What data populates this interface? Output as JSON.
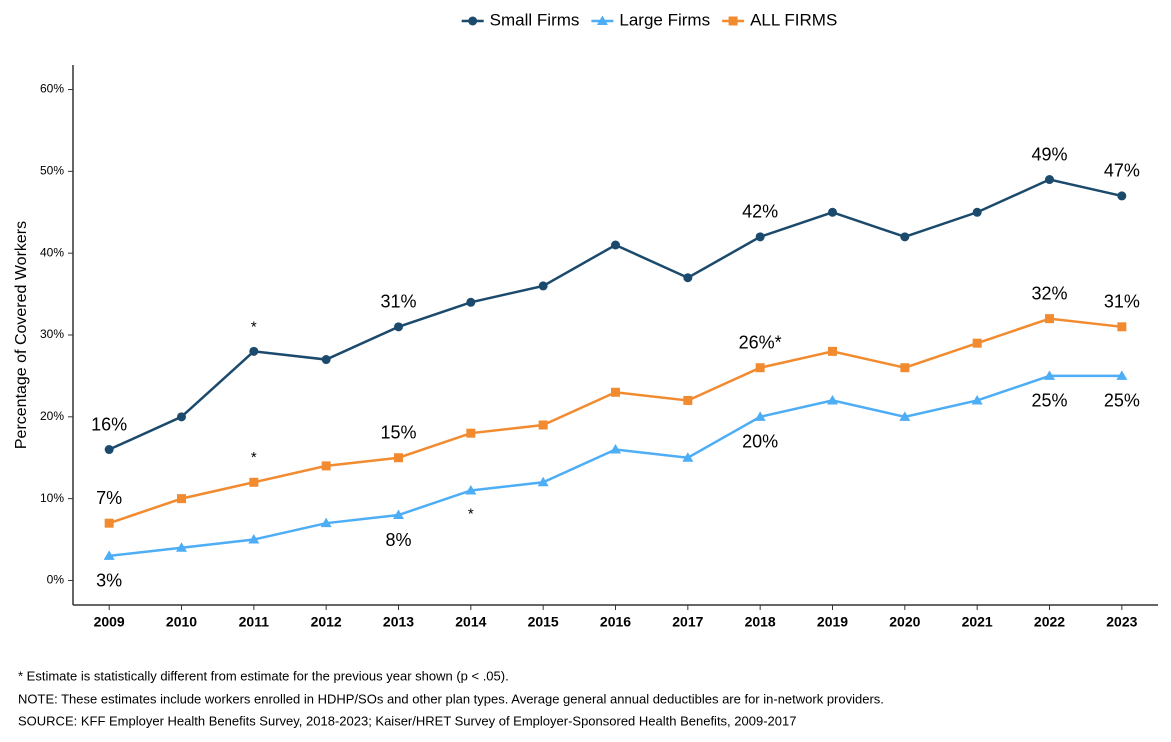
{
  "chart_data": {
    "type": "line",
    "y_label": "Percentage of Covered Workers",
    "categories": [
      "2009",
      "2010",
      "2011",
      "2012",
      "2013",
      "2014",
      "2015",
      "2016",
      "2017",
      "2018",
      "2019",
      "2020",
      "2021",
      "2022",
      "2023"
    ],
    "series": [
      {
        "name": "Small Firms",
        "color": "#1b4a6d",
        "marker": "circle",
        "label_position": "above",
        "values": [
          16,
          20,
          28,
          27,
          31,
          34,
          36,
          41,
          37,
          42,
          45,
          42,
          45,
          49,
          47
        ],
        "value_labels": [
          "16%",
          null,
          null,
          null,
          "31%",
          null,
          null,
          null,
          null,
          "42%",
          null,
          null,
          null,
          "49%",
          "47%"
        ]
      },
      {
        "name": "Large Firms",
        "color": "#4dadf5",
        "marker": "triangle",
        "label_position": "below",
        "values": [
          3,
          4,
          5,
          7,
          8,
          11,
          12,
          16,
          15,
          20,
          22,
          20,
          22,
          25,
          25
        ],
        "value_labels": [
          "3%",
          null,
          null,
          null,
          "8%",
          null,
          null,
          null,
          null,
          "20%",
          null,
          null,
          null,
          "25%",
          "25%"
        ]
      },
      {
        "name": "ALL FIRMS",
        "color": "#f28b30",
        "marker": "square",
        "label_position": "above",
        "values": [
          7,
          10,
          12,
          14,
          15,
          18,
          19,
          23,
          22,
          26,
          28,
          26,
          29,
          32,
          31
        ],
        "value_labels": [
          "7%",
          null,
          null,
          null,
          "15%",
          null,
          null,
          null,
          null,
          "26%*",
          null,
          null,
          null,
          "32%",
          "31%"
        ]
      }
    ],
    "annotations": [
      {
        "text": "*",
        "series": "Small Firms",
        "category": "2011"
      },
      {
        "text": "*",
        "series": "ALL FIRMS",
        "category": "2011"
      },
      {
        "text": "*",
        "series": "Large Firms",
        "category": "2014"
      }
    ],
    "ylim": [
      -3,
      63
    ],
    "yticks": [
      {
        "value": 0,
        "label": "0%"
      },
      {
        "value": 10,
        "label": "10%"
      },
      {
        "value": 20,
        "label": "20%"
      },
      {
        "value": 30,
        "label": "30%"
      },
      {
        "value": 40,
        "label": "40%"
      },
      {
        "value": 50,
        "label": "50%"
      },
      {
        "value": 60,
        "label": "60%"
      }
    ],
    "legend": "top",
    "grid": false,
    "notes": [
      "* Estimate is statistically different from estimate for the previous year shown (p < .05).",
      "NOTE: These estimates include workers enrolled in HDHP/SOs and other plan types. Average general annual deductibles are for in-network providers.",
      "SOURCE: KFF Employer Health Benefits Survey, 2018-2023; Kaiser/HRET Survey of Employer-Sponsored Health Benefits, 2009-2017"
    ]
  }
}
